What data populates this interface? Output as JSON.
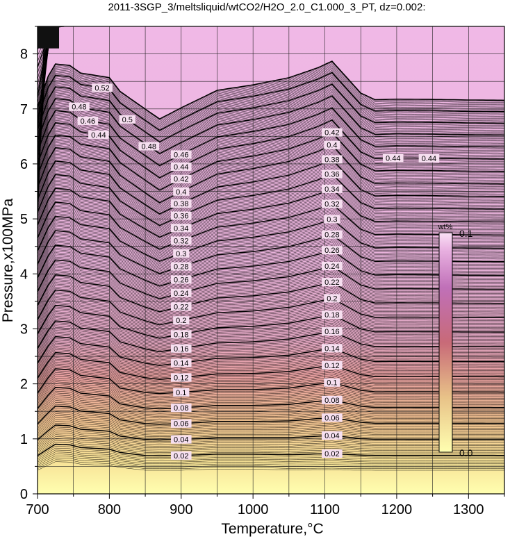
{
  "chart_data": {
    "type": "heatmap",
    "title": "2011-3SGP_3/meltsliquid/wtCO2/H2O_2.0_C1.000_3_PT, dz=0.002:",
    "xlabel": "Temperature,°C",
    "ylabel": "Pressure,x100MPa",
    "xlim": [
      700,
      1350
    ],
    "ylim": [
      0,
      8.5
    ],
    "x_ticks": [
      "700",
      "800",
      "900",
      "1000",
      "1100",
      "1200",
      "1300"
    ],
    "y_ticks": [
      "0",
      "1",
      "2",
      "3",
      "4",
      "5",
      "6",
      "7",
      "8"
    ],
    "grid": true,
    "contour_interval": 0.002,
    "colorbar": {
      "unit": "wt%",
      "max_label": "0.1",
      "min_label": "0.0",
      "range": [
        0.0,
        0.1
      ],
      "colors": [
        "#ffffb0",
        "#f0c890",
        "#e8908a",
        "#d070c0",
        "#a0206a"
      ]
    },
    "contour_labels": [
      {
        "text": "0.02",
        "temperature": 900,
        "level": 0.02
      },
      {
        "text": "0.04",
        "temperature": 900,
        "level": 0.04
      },
      {
        "text": "0.06",
        "temperature": 900,
        "level": 0.06
      },
      {
        "text": "0.08",
        "temperature": 900,
        "level": 0.08
      },
      {
        "text": "0.1",
        "temperature": 900,
        "level": 0.1
      },
      {
        "text": "0.12",
        "temperature": 900,
        "level": 0.12
      },
      {
        "text": "0.14",
        "temperature": 900,
        "level": 0.14
      },
      {
        "text": "0.16",
        "temperature": 900,
        "level": 0.16
      },
      {
        "text": "0.18",
        "temperature": 900,
        "level": 0.18
      },
      {
        "text": "0.2",
        "temperature": 900,
        "level": 0.2
      },
      {
        "text": "0.22",
        "temperature": 900,
        "level": 0.22
      },
      {
        "text": "0.24",
        "temperature": 900,
        "level": 0.24
      },
      {
        "text": "0.26",
        "temperature": 900,
        "level": 0.26
      },
      {
        "text": "0.28",
        "temperature": 900,
        "level": 0.28
      },
      {
        "text": "0.3",
        "temperature": 900,
        "level": 0.3
      },
      {
        "text": "0.32",
        "temperature": 900,
        "level": 0.32
      },
      {
        "text": "0.34",
        "temperature": 900,
        "level": 0.34
      },
      {
        "text": "0.36",
        "temperature": 900,
        "level": 0.36
      },
      {
        "text": "0.38",
        "temperature": 900,
        "level": 0.38
      },
      {
        "text": "0.4",
        "temperature": 900,
        "level": 0.4
      },
      {
        "text": "0.42",
        "temperature": 900,
        "level": 0.42
      },
      {
        "text": "0.44",
        "temperature": 900,
        "level": 0.44
      },
      {
        "text": "0.46",
        "temperature": 900,
        "level": 0.46
      },
      {
        "text": "0.02",
        "temperature": 1110,
        "level": 0.02
      },
      {
        "text": "0.04",
        "temperature": 1110,
        "level": 0.04
      },
      {
        "text": "0.06",
        "temperature": 1110,
        "level": 0.06
      },
      {
        "text": "0.08",
        "temperature": 1110,
        "level": 0.08
      },
      {
        "text": "0.1",
        "temperature": 1110,
        "level": 0.1
      },
      {
        "text": "0.12",
        "temperature": 1110,
        "level": 0.12
      },
      {
        "text": "0.14",
        "temperature": 1110,
        "level": 0.14
      },
      {
        "text": "0.16",
        "temperature": 1110,
        "level": 0.16
      },
      {
        "text": "0.18",
        "temperature": 1110,
        "level": 0.18
      },
      {
        "text": "0.2",
        "temperature": 1110,
        "level": 0.2
      },
      {
        "text": "0.22",
        "temperature": 1110,
        "level": 0.22
      },
      {
        "text": "0.24",
        "temperature": 1110,
        "level": 0.24
      },
      {
        "text": "0.26",
        "temperature": 1110,
        "level": 0.26
      },
      {
        "text": "0.28",
        "temperature": 1110,
        "level": 0.28
      },
      {
        "text": "0.3",
        "temperature": 1110,
        "level": 0.3
      },
      {
        "text": "0.32",
        "temperature": 1110,
        "level": 0.32
      },
      {
        "text": "0.34",
        "temperature": 1110,
        "level": 0.34
      },
      {
        "text": "0.36",
        "temperature": 1110,
        "level": 0.36
      },
      {
        "text": "0.38",
        "temperature": 1110,
        "level": 0.38
      },
      {
        "text": "0.4",
        "temperature": 1110,
        "level": 0.4
      },
      {
        "text": "0.42",
        "temperature": 1110,
        "level": 0.42
      },
      {
        "text": "0.44",
        "temperature": 785,
        "level": 0.44
      },
      {
        "text": "0.46",
        "temperature": 770,
        "level": 0.46
      },
      {
        "text": "0.48",
        "temperature": 758,
        "level": 0.48
      },
      {
        "text": "0.48",
        "temperature": 855,
        "level": 0.48
      },
      {
        "text": "0.5",
        "temperature": 825,
        "level": 0.5
      },
      {
        "text": "0.52",
        "temperature": 790,
        "level": 0.52
      },
      {
        "text": "0.44",
        "temperature": 1195,
        "level": 0.44
      },
      {
        "text": "0.44",
        "temperature": 1245,
        "level": 0.44
      }
    ]
  }
}
